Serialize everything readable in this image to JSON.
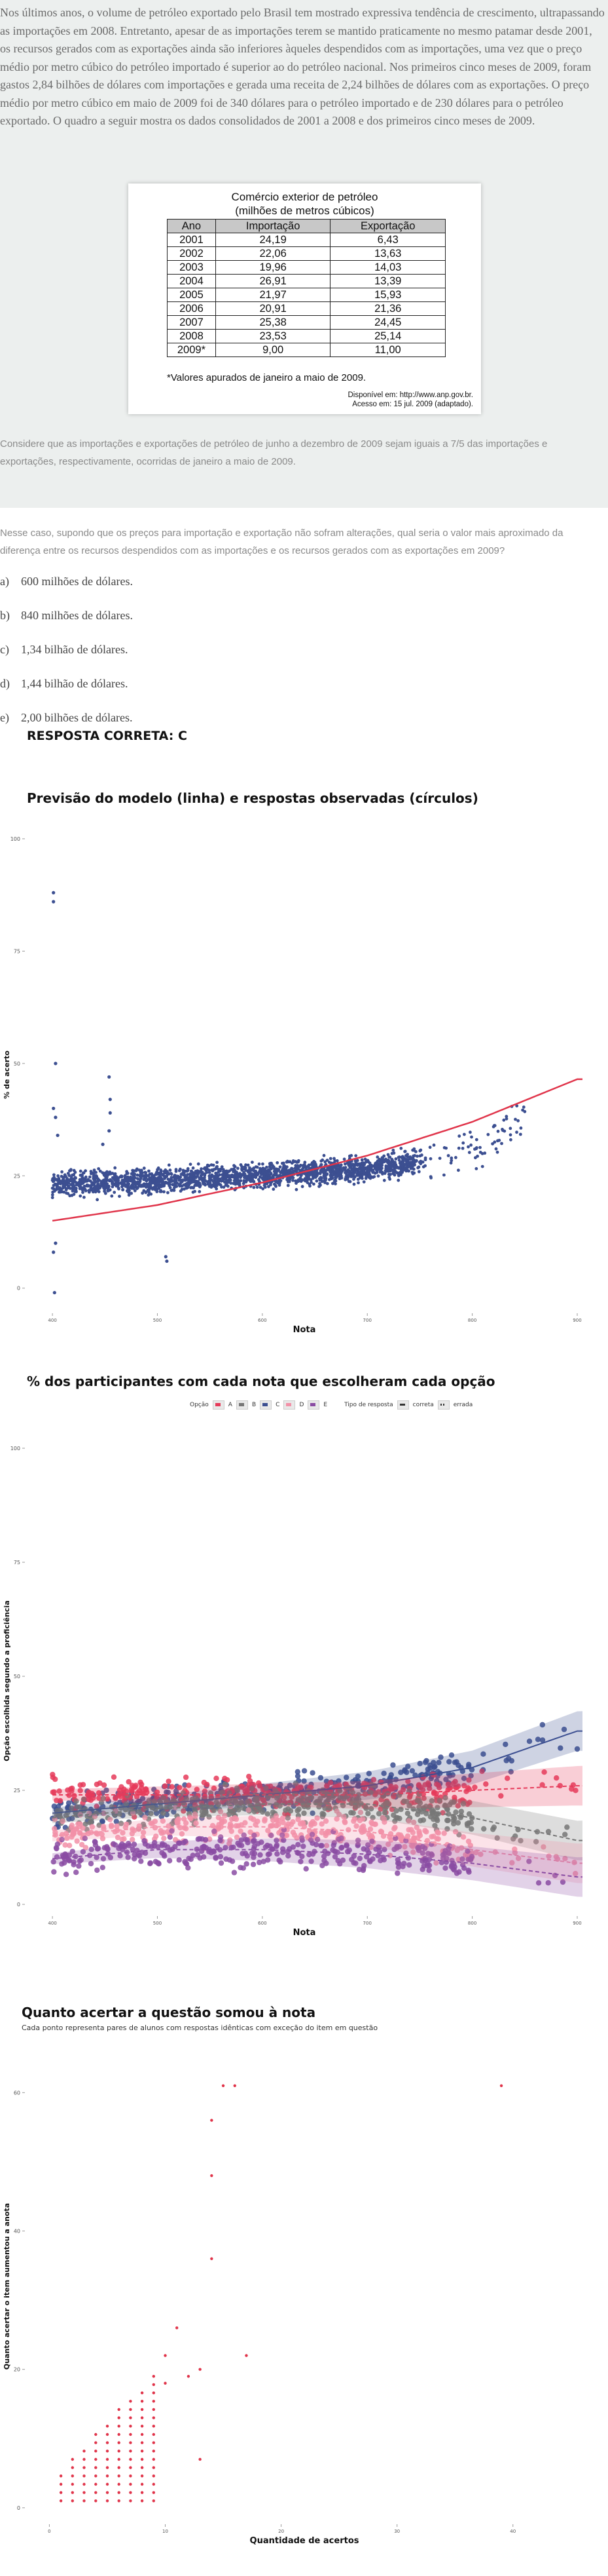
{
  "intro": {
    "paragraph": "Nos últimos anos, o volume de petróleo exportado pelo Brasil tem mostrado expressiva tendência de crescimento, ultrapassando as importações em 2008. Entretanto, apesar de as importações terem se mantido praticamente no mesmo patamar desde 2001, os recursos gerados com as exportações ainda são inferiores àqueles despendidos com as importações, uma vez que o preço médio por metro cúbico do petróleo importado é superior ao do petróleo nacional. Nos primeiros cinco meses de 2009, foram gastos 2,84 bilhões de dólares com importações e gerada uma receita de 2,24 bilhões de dólares com as exportações. O preço médio por metro cúbico em maio de 2009 foi de 340 dólares para o petróleo importado e de 230 dólares para o petróleo exportado. O quadro a seguir mostra os dados consolidados de 2001 a 2008 e dos primeiros cinco meses de 2009.",
    "consider": "Considere que as importações e exportações de petróleo de junho a dezembro de 2009 sejam iguais a 7/5 das importações e exportações, respectivamente, ocorridas de janeiro a maio de 2009."
  },
  "figure": {
    "title_line1": "Comércio exterior de petróleo",
    "title_line2": "(milhões de metros cúbicos)",
    "headers": [
      "Ano",
      "Importação",
      "Exportação"
    ],
    "rows": [
      [
        "2001",
        "24,19",
        "6,43"
      ],
      [
        "2002",
        "22,06",
        "13,63"
      ],
      [
        "2003",
        "19,96",
        "14,03"
      ],
      [
        "2004",
        "26,91",
        "13,39"
      ],
      [
        "2005",
        "21,97",
        "15,93"
      ],
      [
        "2006",
        "20,91",
        "21,36"
      ],
      [
        "2007",
        "25,38",
        "24,45"
      ],
      [
        "2008",
        "23,53",
        "25,14"
      ],
      [
        "2009*",
        "9,00",
        "11,00"
      ]
    ],
    "footnote": "*Valores apurados de janeiro a maio de 2009.",
    "source_line1": "Disponível em: http://www.anp.gov.br.",
    "source_line2": "Acesso em: 15 jul. 2009 (adaptado)."
  },
  "question": {
    "text": "Nesse caso, supondo que os preços para importação e exportação não sofram alterações, qual seria o valor mais aproximado da diferença entre os recursos despendidos com as importações e os recursos gerados com as exportações em 2009?",
    "options": [
      {
        "letter": "a)",
        "text": "600 milhões de dólares."
      },
      {
        "letter": "b)",
        "text": "840 milhões de dólares."
      },
      {
        "letter": "c)",
        "text": "1,34 bilhão de dólares."
      },
      {
        "letter": "d)",
        "text": "1,44 bilhão de dólares."
      },
      {
        "letter": "e)",
        "text": "2,00 bilhões de dólares."
      }
    ],
    "answer": "RESPOSTA CORRETA: C"
  },
  "chart_data": [
    {
      "type": "scatter",
      "title": "Previsão do modelo (linha) e respostas observadas (círculos)",
      "xlabel": "Nota",
      "ylabel": "% de acerto",
      "xticks": [
        "400",
        "500",
        "600",
        "700",
        "800",
        "900"
      ],
      "yticks": [
        "0",
        "25",
        "50",
        "75",
        "100"
      ],
      "xlim": [
        375,
        905
      ],
      "ylim": [
        -5,
        100
      ],
      "colors": {
        "points": "#3c4f91",
        "line": "#e0344a"
      },
      "model_line": {
        "x": [
          400,
          500,
          600,
          700,
          800,
          900
        ],
        "y": [
          15,
          18.5,
          23.5,
          29.5,
          37,
          46.5
        ]
      },
      "point_band": {
        "x": [
          400,
          500,
          600,
          700,
          800,
          850
        ],
        "y_center": [
          23,
          24,
          25,
          26.5,
          30,
          38
        ],
        "spread": 4
      },
      "outliers": {
        "x": [
          401,
          401,
          403,
          401,
          403,
          405,
          403,
          454,
          455,
          455,
          454,
          448,
          508,
          509,
          401,
          402
        ],
        "y": [
          88,
          86,
          50,
          40,
          38,
          34,
          10,
          47,
          42,
          39,
          35,
          32,
          7,
          6,
          8,
          -1
        ]
      }
    },
    {
      "type": "scatter",
      "title": "% dos participantes com cada nota que escolheram cada opção",
      "xlabel": "Nota",
      "ylabel": "Opção escolhida segundo a proficiência",
      "xticks": [
        "400",
        "500",
        "600",
        "700",
        "800",
        "900"
      ],
      "yticks": [
        "0",
        "25",
        "50",
        "75",
        "100"
      ],
      "xlim": [
        375,
        905
      ],
      "ylim": [
        -2,
        100
      ],
      "legend": {
        "option_label": "Opção",
        "options": [
          "A",
          "B",
          "C",
          "D",
          "E"
        ],
        "type_label": "Tipo de resposta",
        "types": [
          "correta",
          "errada"
        ]
      },
      "series": [
        {
          "name": "C",
          "color": "#3c4f91",
          "x": [
            400,
            500,
            600,
            700,
            800,
            900
          ],
          "y": [
            20,
            22,
            24,
            26,
            30,
            38
          ]
        },
        {
          "name": "A",
          "color": "#e63b5a",
          "x": [
            400,
            500,
            600,
            700,
            800,
            900
          ],
          "y": [
            24,
            24,
            24,
            24,
            25,
            26
          ]
        },
        {
          "name": "B",
          "color": "#777777",
          "x": [
            400,
            500,
            600,
            700,
            800,
            900
          ],
          "y": [
            19,
            21,
            22,
            22,
            19,
            14
          ]
        },
        {
          "name": "D",
          "color": "#f291a8",
          "x": [
            400,
            500,
            600,
            700,
            800,
            900
          ],
          "y": [
            15,
            17,
            17,
            16,
            12,
            9
          ]
        },
        {
          "name": "E",
          "color": "#8a4ca3",
          "x": [
            400,
            500,
            600,
            700,
            800,
            900
          ],
          "y": [
            10,
            12,
            12,
            11,
            9,
            6
          ]
        }
      ]
    },
    {
      "type": "scatter",
      "title": "Quanto acertar a questão somou à nota",
      "subtitle": "Cada ponto representa pares de alunos com respostas idênticas com exceção do item em questão",
      "xlabel": "Quantidade de acertos",
      "ylabel": "Quanto acertar o item aumentou a anota",
      "xticks": [
        "0",
        "10",
        "20",
        "30",
        "40"
      ],
      "yticks": [
        "0",
        "20",
        "40",
        "60"
      ],
      "xlim": [
        -2,
        46
      ],
      "ylim": [
        -2,
        66
      ],
      "color": "#e0344a"
    }
  ]
}
